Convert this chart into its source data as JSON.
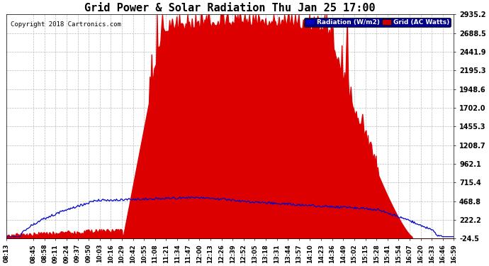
{
  "title": "Grid Power & Solar Radiation Thu Jan 25 17:00",
  "copyright": "Copyright 2018 Cartronics.com",
  "legend_labels": [
    "Radiation (W/m2)",
    "Grid (AC Watts)"
  ],
  "legend_colors": [
    "#0000dd",
    "#dd0000"
  ],
  "legend_bg_colors": [
    "#0000cc",
    "#cc0000"
  ],
  "yticks": [
    -24.5,
    222.2,
    468.8,
    715.4,
    962.1,
    1208.7,
    1455.3,
    1702.0,
    1948.6,
    2195.3,
    2441.9,
    2688.5,
    2935.2
  ],
  "ymin": -24.5,
  "ymax": 2935.2,
  "background_color": "#ffffff",
  "plot_bg_color": "#ffffff",
  "grid_color": "#bbbbbb",
  "red_fill_color": "#dd0000",
  "blue_line_color": "#0000cc",
  "xtick_labels": [
    "08:13",
    "08:45",
    "08:58",
    "09:11",
    "09:24",
    "09:37",
    "09:50",
    "10:03",
    "10:16",
    "10:29",
    "10:42",
    "10:55",
    "11:08",
    "11:21",
    "11:34",
    "11:47",
    "12:00",
    "12:13",
    "12:26",
    "12:39",
    "12:52",
    "13:05",
    "13:18",
    "13:31",
    "13:44",
    "13:57",
    "14:10",
    "14:23",
    "14:36",
    "14:49",
    "15:02",
    "15:15",
    "15:28",
    "15:41",
    "15:54",
    "16:07",
    "16:20",
    "16:33",
    "16:46",
    "16:59"
  ]
}
